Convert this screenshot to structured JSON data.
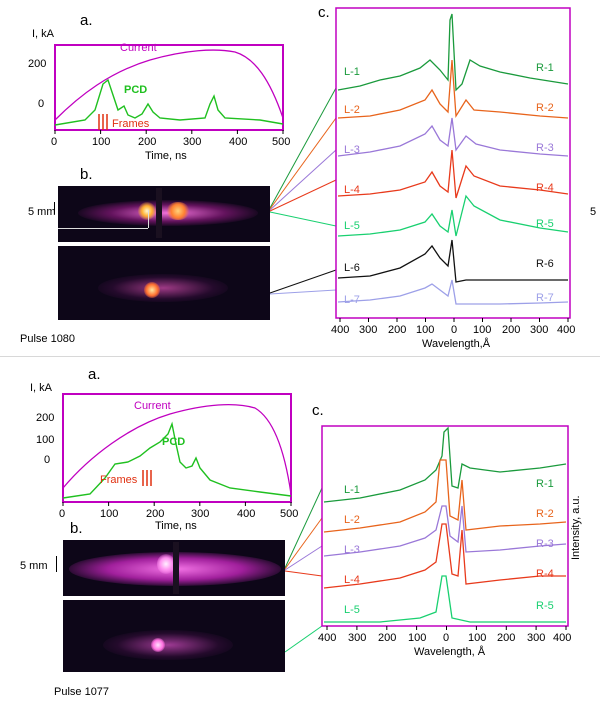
{
  "panel1": {
    "label_a": "a.",
    "label_b": "b.",
    "label_c": "c.",
    "y_unit": "I, kA",
    "y_ticks": [
      "200",
      "0"
    ],
    "x_ticks": [
      "0",
      "100",
      "200",
      "300",
      "400",
      "500"
    ],
    "x_label": "Time, ns",
    "current_label": "Current",
    "pcd_label": "PCD",
    "frames_label": "Frames",
    "scale_label": "5 mm",
    "pulse": "Pulse 1080",
    "spec_left": [
      "L-1",
      "L-2",
      "L-3",
      "L-4",
      "L-5",
      "L-6",
      "L-7"
    ],
    "spec_right": [
      "R-1",
      "R-2",
      "R-3",
      "R-4",
      "R-5",
      "R-6",
      "R-7"
    ],
    "spec_colors": [
      "#1a9a3c",
      "#e8641c",
      "#9a78d8",
      "#e83a1c",
      "#19d070",
      "#111111",
      "#9da0e8"
    ],
    "spec_x_ticks": [
      "400",
      "300",
      "200",
      "100",
      "0",
      "100",
      "200",
      "300",
      "400"
    ],
    "spec_x_label": "Wavelength,Å",
    "edge_char": "5"
  },
  "panel2": {
    "label_a": "a.",
    "label_b": "b.",
    "label_c": "c.",
    "y_unit": "I, kA",
    "y_ticks": [
      "200",
      "100",
      "0"
    ],
    "x_ticks": [
      "0",
      "100",
      "200",
      "300",
      "400",
      "500"
    ],
    "x_label": "Time, ns",
    "current_label": "Current",
    "pcd_label": "PCD",
    "frames_label": "Frames",
    "scale_label": "5 mm",
    "pulse": "Pulse 1077",
    "spec_left": [
      "L-1",
      "L-2",
      "L-3",
      "L-4",
      "L-5"
    ],
    "spec_right": [
      "R-1",
      "R-2",
      "R-3",
      "R-4",
      "R-5"
    ],
    "spec_colors": [
      "#1a9a3c",
      "#e8641c",
      "#9a78d8",
      "#e83a1c",
      "#19d070"
    ],
    "spec_x_ticks": [
      "400",
      "300",
      "200",
      "100",
      "0",
      "100",
      "200",
      "300",
      "400"
    ],
    "spec_x_label": "Wavelength, Å",
    "intensity_label": "Intensity, a.u."
  }
}
